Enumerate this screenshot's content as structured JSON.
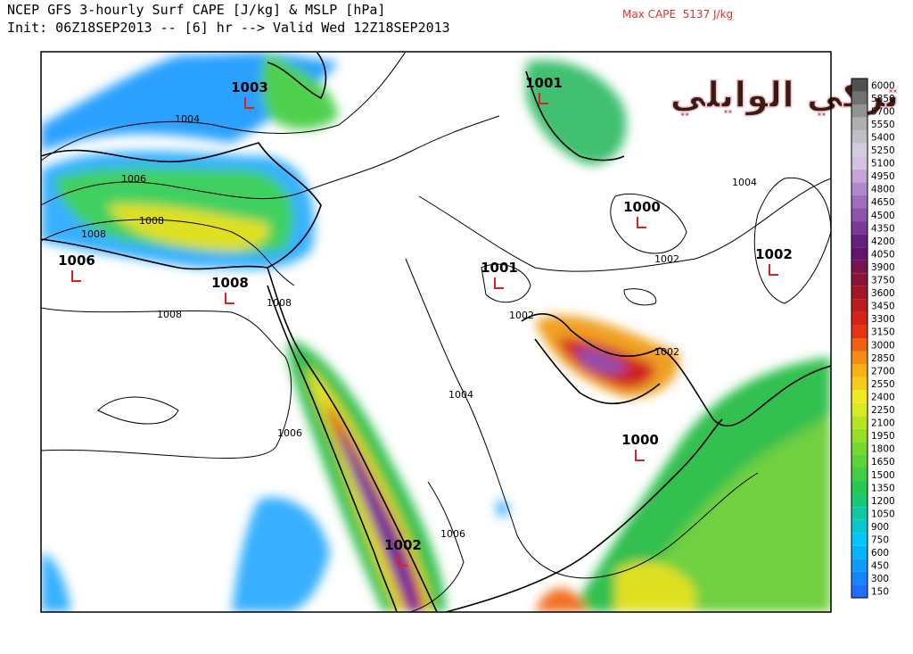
{
  "header": {
    "title": "NCEP GFS 3-hourly Surf CAPE [J/kg] & MSLP [hPa]",
    "subtitle": "Init: 06Z18SEP2013 -- [6] hr --> Valid Wed 12Z18SEP2013",
    "max_cape": "Max CAPE  5137 J/kg"
  },
  "watermark": "تركي الوايلي",
  "pressure_centers": [
    "1003",
    "1001",
    "1000",
    "1006",
    "1008",
    "1001",
    "1002",
    "1000",
    "1002"
  ],
  "contour_labels": [
    "1004",
    "1006",
    "1008",
    "1008",
    "1008",
    "1008",
    "1002",
    "1002",
    "1004",
    "1004",
    "1006",
    "1006",
    "1002"
  ],
  "colorbar": {
    "ticks": [
      150,
      300,
      450,
      600,
      750,
      900,
      1050,
      1200,
      1350,
      1500,
      1650,
      1800,
      1950,
      2100,
      2250,
      2400,
      2550,
      2700,
      2850,
      3000,
      3150,
      3300,
      3450,
      3600,
      3750,
      3900,
      4050,
      4200,
      4350,
      4500,
      4650,
      4800,
      4950,
      5100,
      5250,
      5400,
      5550,
      5700,
      5850,
      6000
    ]
  }
}
